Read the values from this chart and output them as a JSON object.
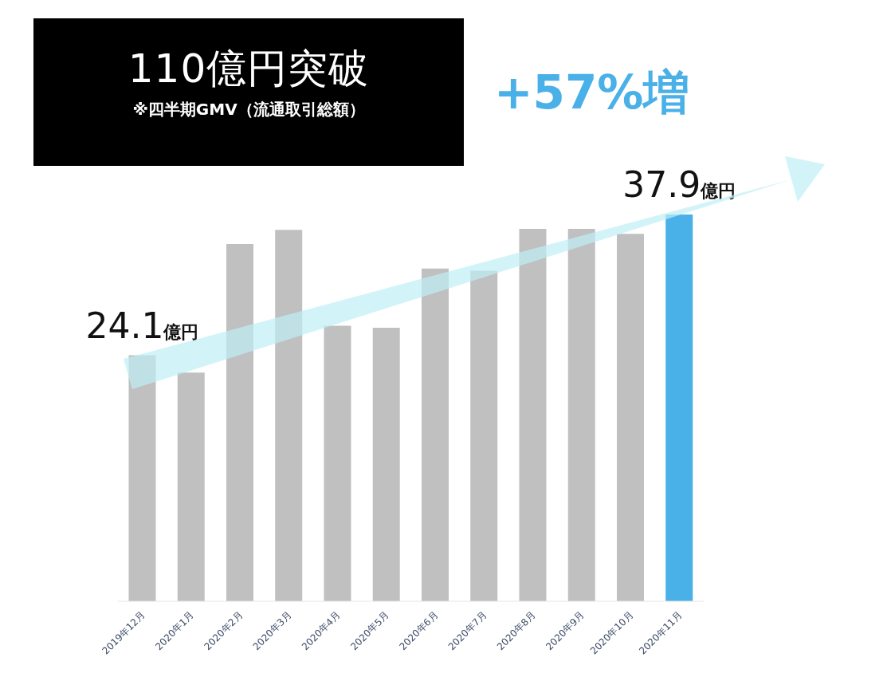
{
  "chart_data": {
    "type": "bar",
    "title": "110億円突破",
    "subtitle": "※四半期GMV（流通取引総額）",
    "annotations": [
      "+57%増"
    ],
    "categories": [
      "2019年12月",
      "2020年1月",
      "2020年2月",
      "2020年3月",
      "2020年4月",
      "2020年5月",
      "2020年6月",
      "2020年7月",
      "2020年8月",
      "2020年9月",
      "2020年10月",
      "2020年11月"
    ],
    "values": [
      24.1,
      22.4,
      35.0,
      36.4,
      27.0,
      26.8,
      32.6,
      32.4,
      36.5,
      36.5,
      36.0,
      37.9
    ],
    "colors": [
      "#c0c0c0",
      "#c0c0c0",
      "#c0c0c0",
      "#c0c0c0",
      "#c0c0c0",
      "#c0c0c0",
      "#c0c0c0",
      "#c0c0c0",
      "#c0c0c0",
      "#c0c0c0",
      "#c0c0c0",
      "#4ab0e8"
    ],
    "value_labels": [
      "24.1億円",
      null,
      null,
      null,
      null,
      null,
      null,
      null,
      null,
      null,
      null,
      "37.9億円"
    ],
    "grid": false,
    "legend": false
  }
}
